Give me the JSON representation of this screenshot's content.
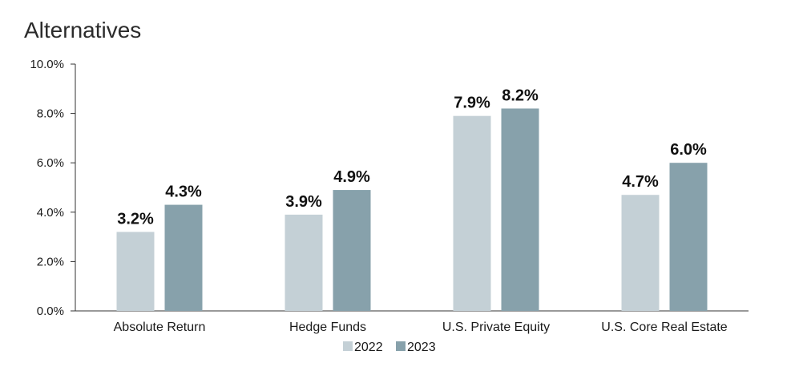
{
  "chart_data": {
    "type": "bar",
    "title": "Alternatives",
    "categories": [
      "Absolute Return",
      "Hedge Funds",
      "U.S. Private Equity",
      "U.S. Core Real Estate"
    ],
    "series": [
      {
        "name": "2022",
        "values": [
          3.2,
          3.9,
          7.9,
          4.7
        ],
        "labels": [
          "3.2%",
          "3.9%",
          "7.9%",
          "4.7%"
        ],
        "color": "#c4d0d6"
      },
      {
        "name": "2023",
        "values": [
          4.3,
          4.9,
          8.2,
          6.0
        ],
        "labels": [
          "4.3%",
          "4.9%",
          "8.2%",
          "6.0%"
        ],
        "color": "#87a1ab"
      }
    ],
    "yticks": [
      0,
      2,
      4,
      6,
      8,
      10
    ],
    "ytick_labels": [
      "0.0%",
      "2.0%",
      "4.0%",
      "6.0%",
      "8.0%",
      "10.0%"
    ],
    "ylim": [
      0,
      10
    ],
    "xlabel": "",
    "ylabel": "",
    "grid": false,
    "legend_position": "bottom-center"
  }
}
